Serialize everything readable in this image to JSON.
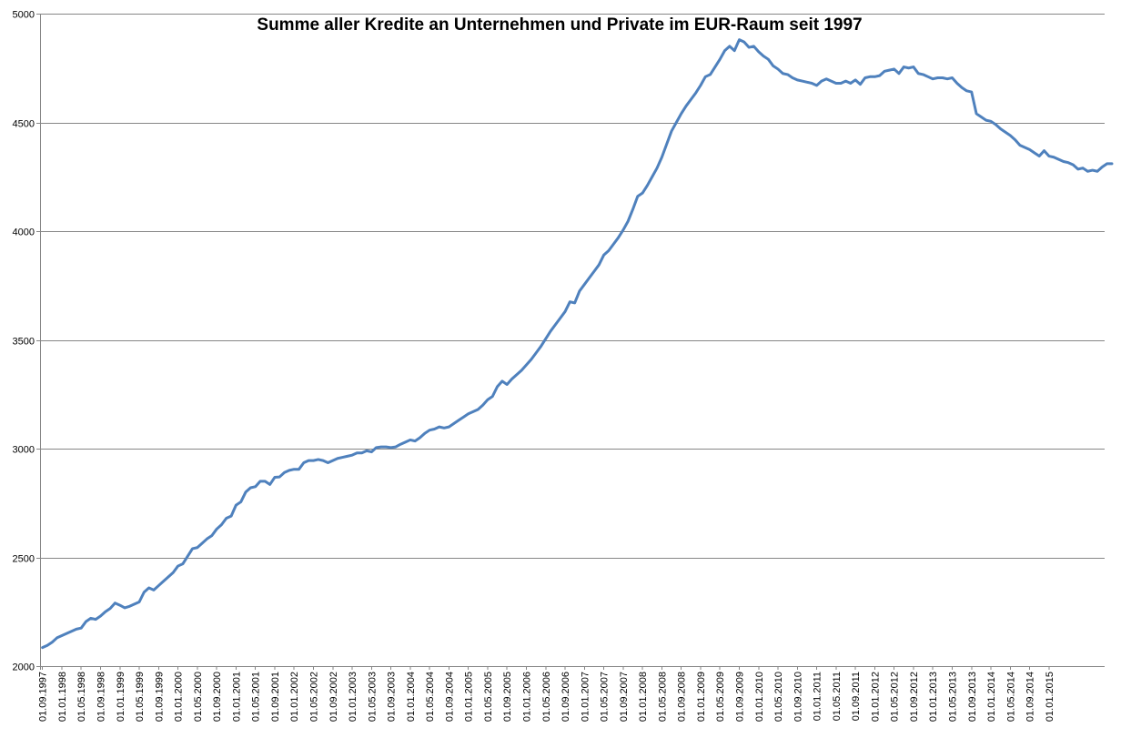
{
  "chart_data": {
    "type": "line",
    "title": "Summe aller Kredite an Unternehmen und Private im EUR-Raum seit 1997",
    "xlabel": "",
    "ylabel": "",
    "ylim": [
      2000,
      5000
    ],
    "yticks": [
      2000,
      2500,
      3000,
      3500,
      4000,
      4500,
      5000
    ],
    "grid": "horizontal",
    "legend": "none",
    "line_color": "#4f81bd",
    "x_tick_labels": [
      "01.09.1997",
      "01.01.1998",
      "01.05.1998",
      "01.09.1998",
      "01.01.1999",
      "01.05.1999",
      "01.09.1999",
      "01.01.2000",
      "01.05.2000",
      "01.09.2000",
      "01.01.2001",
      "01.05.2001",
      "01.09.2001",
      "01.01.2002",
      "01.05.2002",
      "01.09.2002",
      "01.01.2003",
      "01.05.2003",
      "01.09.2003",
      "01.01.2004",
      "01.05.2004",
      "01.09.2004",
      "01.01.2005",
      "01.05.2005",
      "01.09.2005",
      "01.01.2006",
      "01.05.2006",
      "01.09.2006",
      "01.01.2007",
      "01.05.2007",
      "01.09.2007",
      "01.01.2008",
      "01.05.2008",
      "01.09.2008",
      "01.01.2009",
      "01.05.2009",
      "01.09.2009",
      "01.01.2010",
      "01.05.2010",
      "01.09.2010",
      "01.01.2011",
      "01.05.2011",
      "01.09.2011",
      "01.01.2012",
      "01.05.2012",
      "01.09.2012",
      "01.01.2013",
      "01.05.2013",
      "01.09.2013",
      "01.01.2014",
      "01.05.2014",
      "01.09.2014",
      "01.01.2015"
    ],
    "x_start": "1997-09",
    "x_frequency": "monthly",
    "series": [
      {
        "values": [
          2085,
          2095,
          2110,
          2130,
          2140,
          2150,
          2160,
          2170,
          2175,
          2205,
          2220,
          2215,
          2230,
          2250,
          2265,
          2290,
          2280,
          2268,
          2275,
          2285,
          2295,
          2340,
          2360,
          2350,
          2370,
          2390,
          2410,
          2430,
          2460,
          2470,
          2505,
          2540,
          2545,
          2565,
          2585,
          2600,
          2630,
          2650,
          2680,
          2690,
          2740,
          2755,
          2800,
          2820,
          2825,
          2850,
          2850,
          2835,
          2868,
          2870,
          2890,
          2900,
          2905,
          2905,
          2935,
          2945,
          2945,
          2950,
          2945,
          2935,
          2945,
          2955,
          2960,
          2965,
          2970,
          2980,
          2980,
          2990,
          2985,
          3005,
          3008,
          3008,
          3005,
          3008,
          3020,
          3030,
          3040,
          3035,
          3050,
          3070,
          3085,
          3090,
          3100,
          3095,
          3100,
          3115,
          3130,
          3145,
          3160,
          3170,
          3180,
          3200,
          3225,
          3240,
          3285,
          3310,
          3295,
          3320,
          3340,
          3360,
          3385,
          3410,
          3440,
          3470,
          3505,
          3540,
          3570,
          3600,
          3630,
          3675,
          3670,
          3725,
          3755,
          3785,
          3815,
          3845,
          3890,
          3910,
          3940,
          3970,
          4005,
          4045,
          4100,
          4160,
          4175,
          4210,
          4250,
          4290,
          4340,
          4400,
          4460,
          4500,
          4540,
          4575,
          4605,
          4635,
          4670,
          4710,
          4720,
          4755,
          4790,
          4830,
          4850,
          4830,
          4880,
          4870,
          4845,
          4850,
          4825,
          4805,
          4790,
          4760,
          4745,
          4725,
          4720,
          4705,
          4695,
          4690,
          4685,
          4680,
          4670,
          4690,
          4700,
          4690,
          4680,
          4680,
          4690,
          4680,
          4695,
          4675,
          4705,
          4710,
          4710,
          4715,
          4735,
          4740,
          4745,
          4725,
          4755,
          4750,
          4755,
          4725,
          4720,
          4710,
          4700,
          4705,
          4705,
          4700,
          4705,
          4680,
          4660,
          4645,
          4640,
          4540,
          4525,
          4510,
          4505,
          4490,
          4470,
          4455,
          4440,
          4420,
          4395,
          4385,
          4375,
          4360,
          4345,
          4370,
          4345,
          4340,
          4330,
          4320,
          4315,
          4305,
          4285,
          4290,
          4275,
          4280,
          4275,
          4295,
          4310,
          4310
        ]
      }
    ]
  }
}
